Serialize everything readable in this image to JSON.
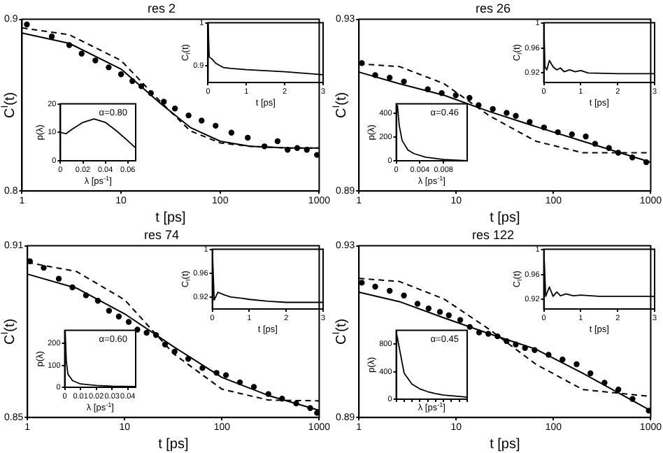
{
  "chart_data": [
    {
      "type": "scatter",
      "title": "res 2",
      "xlabel": "t [ps]",
      "ylabel": "C$^{I}$(t)",
      "log": "x",
      "xlim": [
        1,
        1000
      ],
      "xticks": [
        1,
        10,
        100,
        1000
      ],
      "ylim": [
        0.8,
        0.9
      ],
      "yticks": [
        0.8,
        0.9
      ],
      "series": [
        {
          "marker": "circle",
          "color": "#000000",
          "x": [
            1.12,
            2,
            3,
            4,
            5.5,
            7.5,
            10,
            13,
            16,
            20,
            27,
            35,
            48,
            65,
            90,
            130,
            190,
            280,
            380,
            480,
            600,
            750,
            950
          ],
          "values": [
            0.897,
            0.89,
            0.885,
            0.88,
            0.876,
            0.872,
            0.868,
            0.864,
            0.861,
            0.857,
            0.852,
            0.848,
            0.844,
            0.841,
            0.838,
            0.834,
            0.831,
            0.826,
            0.829,
            0.824,
            0.825,
            0.824,
            0.821
          ]
        },
        {
          "type": "line",
          "line_style": "solid",
          "color": "#000000",
          "x": [
            1,
            3,
            10,
            25,
            50,
            100,
            200,
            500,
            1000
          ],
          "values": [
            0.892,
            0.886,
            0.871,
            0.851,
            0.837,
            0.829,
            0.826,
            0.825,
            0.825
          ]
        },
        {
          "type": "line",
          "line_style": "dashed",
          "color": "#000000",
          "x": [
            1,
            3,
            10,
            25,
            50,
            100,
            200,
            500,
            1000
          ],
          "values": [
            0.895,
            0.891,
            0.876,
            0.852,
            0.835,
            0.828,
            0.826,
            0.825,
            0.825
          ]
        }
      ]
    },
    {
      "type": "line",
      "xlabel": "t [ps]",
      "ylabel": "C$_{I}$(t)",
      "xlim": [
        0,
        3
      ],
      "xticks": [
        0,
        1,
        2,
        3
      ],
      "ylim": [
        0.86,
        1
      ],
      "yticks": [
        0.9,
        1
      ],
      "series": [
        {
          "line_style": "solid",
          "color": "#000000",
          "x": [
            0,
            0.03,
            0.1,
            0.2,
            0.3,
            0.4,
            0.6,
            1,
            2,
            3
          ],
          "values": [
            1,
            0.92,
            0.915,
            0.905,
            0.9,
            0.895,
            0.893,
            0.89,
            0.885,
            0.878
          ]
        }
      ]
    },
    {
      "type": "line",
      "xlabel": "λ [ps$^{-1}$]",
      "ylabel": "p(λ)",
      "xlim": [
        0,
        0.067
      ],
      "xticks": [
        0,
        0.02,
        0.04,
        0.06
      ],
      "ylim": [
        0,
        20
      ],
      "yticks": [
        0,
        10,
        20
      ],
      "annotations": [
        "α=0.80"
      ],
      "series": [
        {
          "line_style": "solid",
          "color": "#000000",
          "x": [
            0,
            0.005,
            0.01,
            0.02,
            0.03,
            0.04,
            0.05,
            0.06,
            0.067
          ],
          "values": [
            10,
            9.5,
            11,
            13.5,
            14.7,
            13.5,
            10.5,
            7,
            4.5
          ]
        }
      ]
    },
    {
      "type": "scatter",
      "title": "res 26",
      "xlabel": "t [ps]",
      "ylabel": "C$^{I}$(t)",
      "log": "x",
      "xlim": [
        1,
        1000
      ],
      "xticks": [
        1,
        10,
        100,
        1000
      ],
      "ylim": [
        0.89,
        0.93
      ],
      "yticks": [
        0.89,
        0.93
      ],
      "series": [
        {
          "marker": "circle",
          "color": "#000000",
          "x": [
            1.07,
            1.47,
            2.07,
            2.9,
            5.1,
            7.1,
            9.9,
            13.7,
            17,
            23.8,
            33,
            41,
            57,
            80,
            111,
            155,
            215,
            268,
            372,
            464,
            647,
            900
          ],
          "values": [
            0.9198,
            0.917,
            0.9164,
            0.9155,
            0.9137,
            0.9128,
            0.9123,
            0.9117,
            0.91,
            0.9091,
            0.9082,
            0.9075,
            0.9061,
            0.9048,
            0.9037,
            0.9032,
            0.9027,
            0.901,
            0.9,
            0.8989,
            0.8978,
            0.8967
          ]
        },
        {
          "type": "line",
          "line_style": "solid",
          "color": "#000000",
          "x": [
            1,
            2.6,
            7.5,
            22,
            66,
            200,
            1000
          ],
          "values": [
            0.9177,
            0.915,
            0.9123,
            0.9085,
            0.905,
            0.9016,
            0.8967
          ]
        },
        {
          "type": "line",
          "line_style": "dashed",
          "color": "#000000",
          "x": [
            1,
            2.6,
            7.5,
            22,
            66,
            200,
            1000
          ],
          "values": [
            0.9196,
            0.919,
            0.915,
            0.9075,
            0.9016,
            0.8989,
            0.8989
          ]
        }
      ]
    },
    {
      "type": "line",
      "xlabel": "t [ps]",
      "ylabel": "C$_{I}$(t)",
      "xlim": [
        0,
        3
      ],
      "xticks": [
        0,
        1,
        2,
        3
      ],
      "ylim": [
        0.905,
        1
      ],
      "yticks": [
        0.92,
        0.96,
        1
      ],
      "series": [
        {
          "line_style": "solid",
          "color": "#000000",
          "x": [
            0,
            0.03,
            0.08,
            0.15,
            0.25,
            0.35,
            0.45,
            0.55,
            0.7,
            0.85,
            1,
            1.2,
            2,
            3
          ],
          "values": [
            1,
            0.93,
            0.925,
            0.94,
            0.93,
            0.925,
            0.928,
            0.922,
            0.925,
            0.922,
            0.924,
            0.92,
            0.919,
            0.919
          ]
        }
      ]
    },
    {
      "type": "line",
      "xlabel": "λ [ps$^{-1}$]",
      "ylabel": "p(λ)",
      "xlim": [
        0,
        0.012
      ],
      "xticks": [
        0,
        0.004,
        0.008
      ],
      "ylim": [
        0,
        480
      ],
      "yticks": [
        0,
        200,
        400
      ],
      "annotations": [
        "α=0.46"
      ],
      "series": [
        {
          "line_style": "solid",
          "color": "#000000",
          "x": [
            0.0002,
            0.0005,
            0.001,
            0.002,
            0.003,
            0.005,
            0.008,
            0.012
          ],
          "values": [
            470,
            300,
            170,
            90,
            60,
            30,
            10,
            0
          ]
        }
      ]
    },
    {
      "type": "scatter",
      "title": "res 74",
      "xlabel": "t [ps]",
      "ylabel": "C$^{I}$(t)",
      "log": "x",
      "xlim": [
        1,
        1000
      ],
      "xticks": [
        1,
        10,
        100,
        1000
      ],
      "ylim": [
        0.85,
        0.91
      ],
      "yticks": [
        0.85,
        0.91
      ],
      "series": [
        {
          "marker": "circle",
          "color": "#000000",
          "x": [
            1.06,
            1.47,
            2.1,
            2.9,
            4,
            5.3,
            6.9,
            8.7,
            11,
            13.5,
            16.8,
            21,
            26,
            32.6,
            45,
            63,
            88,
            110,
            153,
            213,
            300,
            415,
            580,
            808,
            950
          ],
          "values": [
            0.9046,
            0.9023,
            0.8985,
            0.8955,
            0.8927,
            0.8908,
            0.8873,
            0.8853,
            0.8834,
            0.8807,
            0.8796,
            0.8788,
            0.8755,
            0.873,
            0.8705,
            0.8673,
            0.8656,
            0.8648,
            0.8623,
            0.8607,
            0.8582,
            0.8566,
            0.8549,
            0.8533,
            0.8516
          ]
        },
        {
          "type": "line",
          "line_style": "solid",
          "color": "#000000",
          "x": [
            1,
            3.2,
            10,
            32,
            100,
            300,
            1000
          ],
          "values": [
            0.9001,
            0.8952,
            0.8862,
            0.8747,
            0.864,
            0.8577,
            0.8525
          ]
        },
        {
          "type": "line",
          "line_style": "dashed",
          "color": "#000000",
          "x": [
            1,
            3.2,
            10,
            32,
            100,
            300,
            1000
          ],
          "values": [
            0.9042,
            0.901,
            0.8911,
            0.8722,
            0.8599,
            0.8561,
            0.8558
          ]
        }
      ]
    },
    {
      "type": "line",
      "xlabel": "t [ps]",
      "ylabel": "C$_{I}$(t)",
      "xlim": [
        0,
        3
      ],
      "xticks": [
        0,
        1,
        2,
        3
      ],
      "ylim": [
        0.9,
        1
      ],
      "yticks": [
        0.92,
        0.96,
        1
      ],
      "series": [
        {
          "line_style": "solid",
          "color": "#000000",
          "x": [
            0,
            0.05,
            0.15,
            0.3,
            0.5,
            0.8,
            1,
            1.5,
            2,
            3
          ],
          "values": [
            1,
            0.915,
            0.928,
            0.924,
            0.92,
            0.918,
            0.916,
            0.913,
            0.911,
            0.911
          ]
        }
      ]
    },
    {
      "type": "line",
      "xlabel": "λ [ps$^{-1}$]",
      "ylabel": "p(λ)",
      "xlim": [
        0,
        0.045
      ],
      "xticks": [
        0,
        0.01,
        0.02,
        0.03,
        0.04
      ],
      "ylim": [
        0,
        260
      ],
      "yticks": [
        0,
        100,
        200
      ],
      "annotations": [
        "α=0.60"
      ],
      "series": [
        {
          "line_style": "solid",
          "color": "#000000",
          "x": [
            0.0003,
            0.001,
            0.002,
            0.005,
            0.01,
            0.02,
            0.03,
            0.045
          ],
          "values": [
            255,
            120,
            60,
            30,
            15,
            8,
            5,
            3
          ]
        }
      ]
    },
    {
      "type": "scatter",
      "title": "res 122",
      "xlabel": "t [ps]",
      "ylabel": "C$^{I}$(t)",
      "log": "x",
      "xlim": [
        1,
        1000
      ],
      "xticks": [
        1,
        10,
        100,
        1000
      ],
      "ylim": [
        0.89,
        0.93
      ],
      "yticks": [
        0.89,
        0.93
      ],
      "series": [
        {
          "marker": "circle",
          "color": "#000000",
          "x": [
            1.07,
            1.47,
            2.07,
            2.9,
            4,
            5.2,
            6.8,
            8.4,
            11,
            13.8,
            17.2,
            21.4,
            26.6,
            33,
            41,
            51,
            64,
            89,
            124,
            173,
            240,
            335,
            465,
            650,
            955
          ],
          "values": [
            0.9214,
            0.9205,
            0.9195,
            0.9184,
            0.9165,
            0.9154,
            0.9146,
            0.9138,
            0.9127,
            0.9111,
            0.9098,
            0.9095,
            0.9089,
            0.9078,
            0.907,
            0.9062,
            0.9057,
            0.9046,
            0.9035,
            0.9024,
            0.9003,
            0.8981,
            0.8965,
            0.8943,
            0.8916
          ]
        },
        {
          "type": "line",
          "line_style": "solid",
          "color": "#000000",
          "x": [
            1,
            2.6,
            7.5,
            22,
            66,
            200,
            1000
          ],
          "values": [
            0.9192,
            0.917,
            0.9132,
            0.9095,
            0.9059,
            0.9003,
            0.8916
          ]
        },
        {
          "type": "line",
          "line_style": "dashed",
          "color": "#000000",
          "x": [
            1,
            2.6,
            7.5,
            22,
            66,
            200,
            1000
          ],
          "values": [
            0.9224,
            0.9217,
            0.9176,
            0.9105,
            0.9024,
            0.8965,
            0.8949
          ]
        }
      ]
    },
    {
      "type": "line",
      "xlabel": "t [ps]",
      "ylabel": "C$_{I}$(t)",
      "xlim": [
        0,
        3
      ],
      "xticks": [
        0,
        1,
        2,
        3
      ],
      "ylim": [
        0.905,
        1
      ],
      "yticks": [
        0.92,
        0.96,
        1
      ],
      "series": [
        {
          "line_style": "solid",
          "color": "#000000",
          "x": [
            0,
            0.05,
            0.15,
            0.25,
            0.35,
            0.45,
            0.6,
            0.8,
            1,
            1.5,
            2,
            3
          ],
          "values": [
            1,
            0.925,
            0.94,
            0.925,
            0.932,
            0.926,
            0.929,
            0.926,
            0.927,
            0.925,
            0.925,
            0.925
          ]
        }
      ]
    },
    {
      "type": "line",
      "xlabel": "λ [ps$^{-1}$]",
      "ylabel": "p(λ)",
      "categories": [
        null,
        null,
        null,
        null,
        null,
        null,
        null,
        null,
        null,
        null
      ],
      "ylim": [
        0,
        1000
      ],
      "yticks": [
        0,
        400,
        800
      ],
      "tick_labels": "y",
      "annotations": [
        "α=0.45"
      ],
      "series": [
        {
          "line_style": "solid",
          "color": "#000000",
          "values": [
            980,
            380,
            220,
            150,
            110,
            80,
            60,
            50,
            40,
            30
          ]
        }
      ]
    }
  ]
}
